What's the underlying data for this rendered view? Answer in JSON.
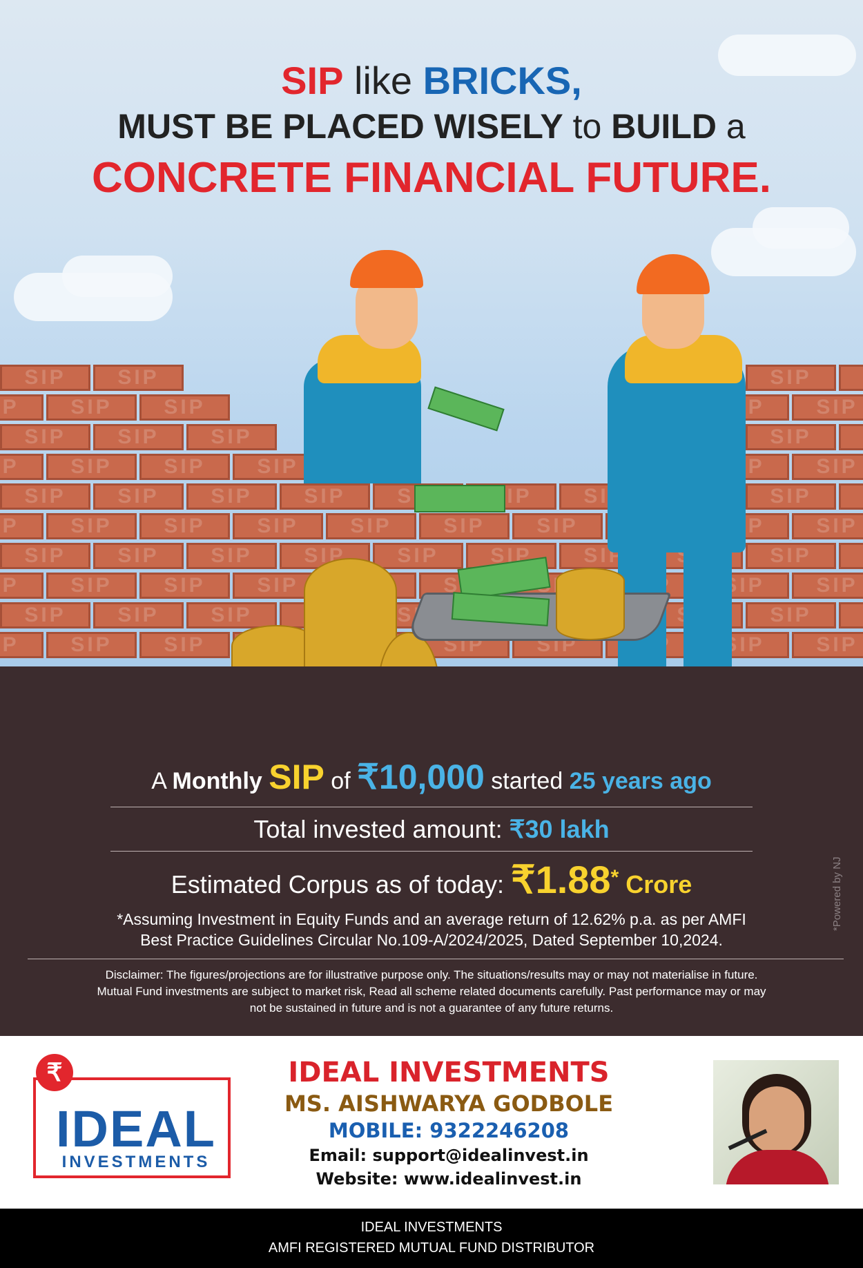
{
  "headline": {
    "line1_a": "SIP",
    "line1_b": " like ",
    "line1_c": "BRICKS,",
    "line2_a": "MUST BE PLACED WISELY",
    "line2_b": " to ",
    "line2_c": "BUILD",
    "line2_d": " a",
    "line3": "CONCRETE FINANCIAL FUTURE."
  },
  "brick_text": "SIP",
  "monthly": {
    "a": "A ",
    "monthly_word": "Monthly ",
    "sip": "SIP",
    "of": " of ",
    "amount": "₹10,000",
    "started": " started ",
    "years": "25 years ago"
  },
  "invested": {
    "label": "Total invested amount: ",
    "value": "₹30 lakh"
  },
  "corpus": {
    "label": "Estimated Corpus as of today: ",
    "value": "₹1.88",
    "star": "*",
    "unit": " Crore"
  },
  "assumption": {
    "line1": "*Assuming Investment in Equity Funds and an average return of 12.62% p.a. as per AMFI",
    "line2": "Best Practice  Guidelines Circular No.109-A/2024/2025, Dated September 10,2024."
  },
  "disclaimer": {
    "line1": "Disclaimer: The figures/projections are for illustrative purpose only. The situations/results may or may not materialise in future.",
    "line2": "Mutual Fund investments are subject to market risk, Read all scheme related documents carefully. Past performance may or may",
    "line3": "not be sustained in future and is not a guarantee of any future returns."
  },
  "powered_by": "*Powered by NJ",
  "logo": {
    "rupee": "₹",
    "word": "IDEAL",
    "sub": "INVESTMENTS"
  },
  "contact": {
    "company": "IDEAL INVESTMENTS",
    "name": "MS. AISHWARYA GODBOLE",
    "mobile": "MOBILE: 9322246208",
    "email": "Email: support@idealinvest.in",
    "website": "Website: www.idealinvest.in"
  },
  "bottom_bar": {
    "line1": "IDEAL INVESTMENTS",
    "line2": "AMFI REGISTERED MUTUAL FUND DISTRIBUTOR"
  },
  "colors": {
    "accent_red": "#e2262d",
    "accent_blue": "#1866b4",
    "ground": "#3c2c2e",
    "highlight_yellow": "#f8d22e",
    "highlight_cyan": "#4ab3e6"
  }
}
